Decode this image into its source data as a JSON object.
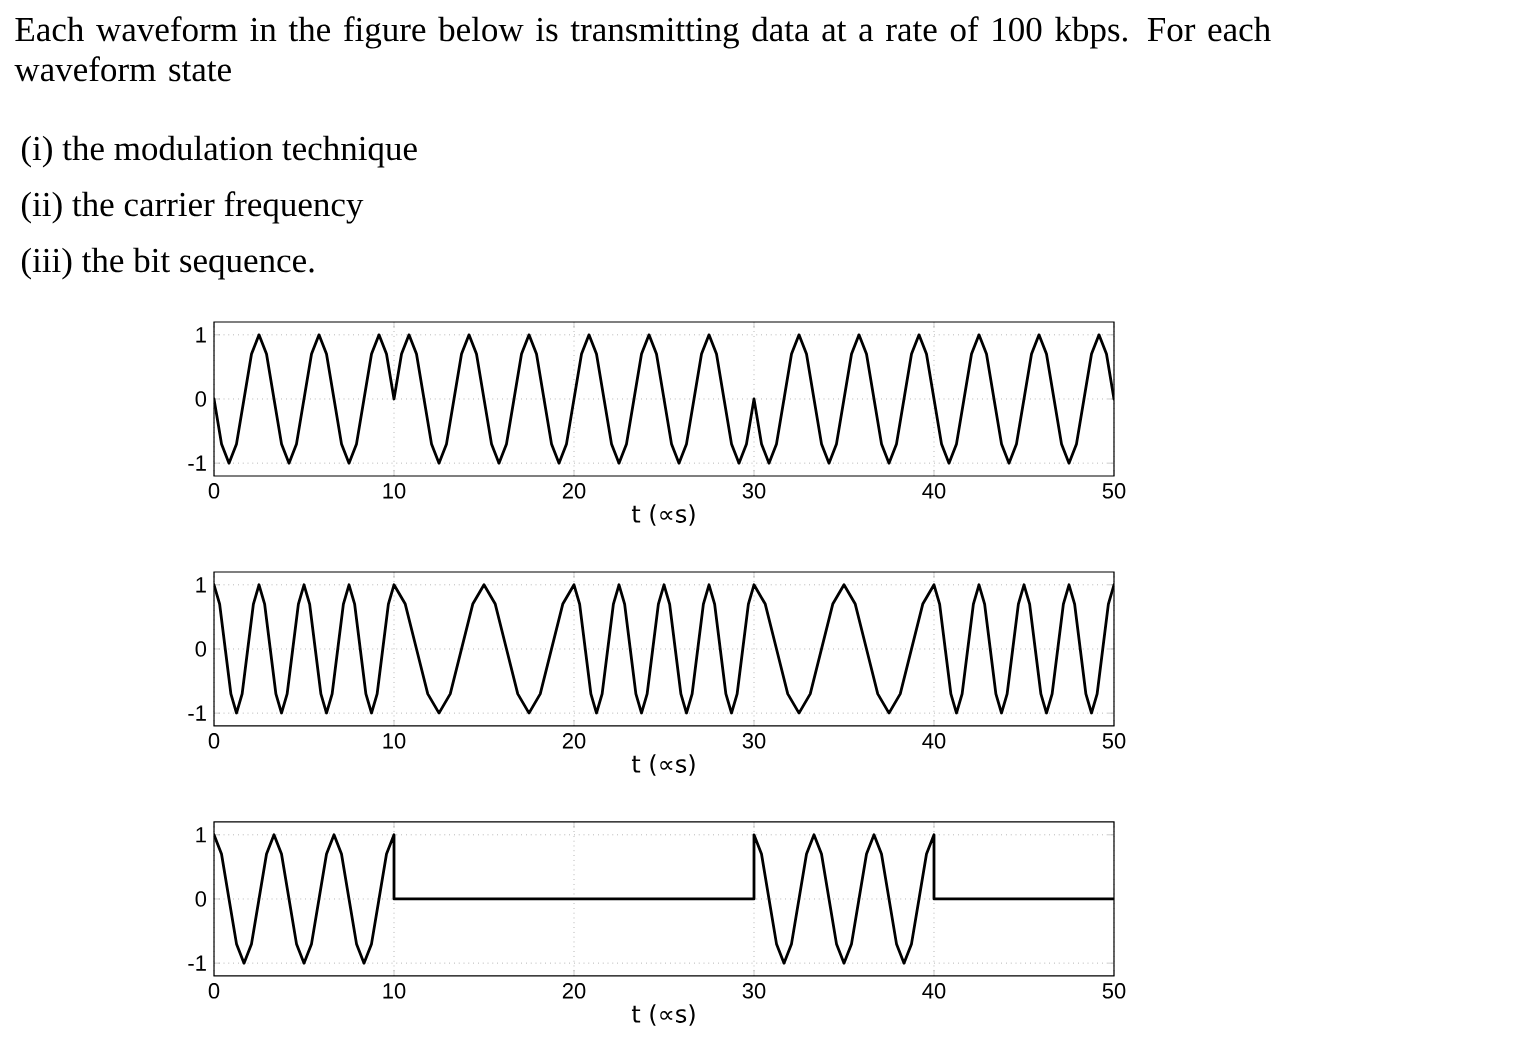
{
  "chart_data": [
    {
      "type": "line",
      "title": "Each waveform in the figure below is transmitting data at a rate of 100 kbps. For each waveform state",
      "annotations": [
        "(i) the modulation technique",
        "(ii) the carrier frequency",
        "(iii) the bit sequence."
      ],
      "xlabel": "t (∝s)",
      "xlim": [
        0,
        50
      ],
      "ylim": [
        -1.2,
        1.2
      ],
      "xticks": [
        0,
        10,
        20,
        30,
        40,
        50
      ],
      "yticks": [
        -1,
        0,
        1
      ],
      "grid": true,
      "x": [
        0,
        0.417,
        0.833,
        1.25,
        1.667,
        2.083,
        2.5,
        2.917,
        3.333,
        3.75,
        4.167,
        4.583,
        5,
        5.417,
        5.833,
        6.25,
        6.667,
        7.083,
        7.5,
        7.917,
        8.333,
        8.75,
        9.167,
        9.583,
        10,
        10.417,
        10.833,
        11.25,
        11.667,
        12.083,
        12.5,
        12.917,
        13.333,
        13.75,
        14.167,
        14.583,
        15,
        15.417,
        15.833,
        16.25,
        16.667,
        17.083,
        17.5,
        17.917,
        18.333,
        18.75,
        19.167,
        19.583,
        20,
        20.417,
        20.833,
        21.25,
        21.667,
        22.083,
        22.5,
        22.917,
        23.333,
        23.75,
        24.167,
        24.583,
        25,
        25.417,
        25.833,
        26.25,
        26.667,
        27.083,
        27.5,
        27.917,
        28.333,
        28.75,
        29.167,
        29.583,
        30,
        30.417,
        30.833,
        31.25,
        31.667,
        32.083,
        32.5,
        32.917,
        33.333,
        33.75,
        34.167,
        34.583,
        35,
        35.417,
        35.833,
        36.25,
        36.667,
        37.083,
        37.5,
        37.917,
        38.333,
        38.75,
        39.167,
        39.583,
        40,
        40.417,
        40.833,
        41.25,
        41.667,
        42.083,
        42.5,
        42.917,
        43.333,
        43.75,
        44.167,
        44.583,
        45,
        45.417,
        45.833,
        46.25,
        46.667,
        47.083,
        47.5,
        47.917,
        48.333,
        48.75,
        49.167,
        49.583,
        50
      ],
      "series": [
        {
          "color": "#000000",
          "values": [
            0,
            -0.7,
            -1,
            -0.7,
            0,
            0.7,
            1,
            0.7,
            0,
            -0.7,
            -1,
            -0.7,
            0,
            0.7,
            1,
            0.7,
            0,
            -0.7,
            -1,
            -0.7,
            0,
            0.7,
            1,
            0.7,
            0,
            0.7,
            1,
            0.7,
            0,
            -0.7,
            -1,
            -0.7,
            0,
            0.7,
            1,
            0.7,
            0,
            -0.7,
            -1,
            -0.7,
            0,
            0.7,
            1,
            0.7,
            0,
            -0.7,
            -1,
            -0.7,
            0,
            0.7,
            1,
            0.7,
            0,
            -0.7,
            -1,
            -0.7,
            0,
            0.7,
            1,
            0.7,
            0,
            -0.7,
            -1,
            -0.7,
            0,
            0.7,
            1,
            0.7,
            0,
            -0.7,
            -1,
            -0.7,
            0,
            -0.7,
            -1,
            -0.7,
            0,
            0.7,
            1,
            0.7,
            0,
            -0.7,
            -1,
            -0.7,
            0,
            0.7,
            1,
            0.7,
            0,
            -0.7,
            -1,
            -0.7,
            0,
            0.7,
            1,
            0.7,
            0,
            -0.7,
            -1,
            -0.7,
            0,
            0.7,
            1,
            0.7,
            0,
            -0.7,
            -1,
            -0.7,
            0,
            0.7,
            1,
            0.7,
            0,
            -0.7,
            -1,
            -0.7,
            0,
            0.7,
            1,
            0.7,
            0
          ]
        }
      ]
    },
    {
      "type": "line",
      "xlabel": "t (∝s)",
      "xlim": [
        0,
        50
      ],
      "ylim": [
        -1.2,
        1.2
      ],
      "xticks": [
        0,
        10,
        20,
        30,
        40,
        50
      ],
      "yticks": [
        -1,
        0,
        1
      ],
      "grid": true,
      "x": [
        0,
        0.313,
        0.625,
        0.938,
        1.25,
        1.563,
        1.875,
        2.188,
        2.5,
        2.813,
        3.125,
        3.438,
        3.75,
        4.063,
        4.375,
        4.688,
        5,
        5.313,
        5.625,
        5.938,
        6.25,
        6.563,
        6.875,
        7.188,
        7.5,
        7.813,
        8.125,
        8.438,
        8.75,
        9.063,
        9.375,
        9.688,
        10,
        10.625,
        11.25,
        11.875,
        12.5,
        13.125,
        13.75,
        14.375,
        15,
        15.625,
        16.25,
        16.875,
        17.5,
        18.125,
        18.75,
        19.375,
        20,
        20.313,
        20.625,
        20.938,
        21.25,
        21.563,
        21.875,
        22.188,
        22.5,
        22.813,
        23.125,
        23.438,
        23.75,
        24.063,
        24.375,
        24.688,
        25,
        25.313,
        25.625,
        25.938,
        26.25,
        26.563,
        26.875,
        27.188,
        27.5,
        27.813,
        28.125,
        28.438,
        28.75,
        29.063,
        29.375,
        29.688,
        30,
        30.625,
        31.25,
        31.875,
        32.5,
        33.125,
        33.75,
        34.375,
        35,
        35.625,
        36.25,
        36.875,
        37.5,
        38.125,
        38.75,
        39.375,
        40,
        40.313,
        40.625,
        40.938,
        41.25,
        41.563,
        41.875,
        42.188,
        42.5,
        42.813,
        43.125,
        43.438,
        43.75,
        44.063,
        44.375,
        44.688,
        45,
        45.313,
        45.625,
        45.938,
        46.25,
        46.563,
        46.875,
        47.188,
        47.5,
        47.813,
        48.125,
        48.438,
        48.75,
        49.063,
        49.375,
        49.688,
        50
      ],
      "series": [
        {
          "color": "#000000",
          "values": [
            1,
            0.7,
            0,
            -0.7,
            -1,
            -0.7,
            0,
            0.7,
            1,
            0.7,
            0,
            -0.7,
            -1,
            -0.7,
            0,
            0.7,
            1,
            0.7,
            0,
            -0.7,
            -1,
            -0.7,
            0,
            0.7,
            1,
            0.7,
            0,
            -0.7,
            -1,
            -0.7,
            0,
            0.7,
            1,
            0.7,
            0,
            -0.7,
            -1,
            -0.7,
            0,
            0.7,
            1,
            0.7,
            0,
            -0.7,
            -1,
            -0.7,
            0,
            0.7,
            1,
            0.7,
            0,
            -0.7,
            -1,
            -0.7,
            0,
            0.7,
            1,
            0.7,
            0,
            -0.7,
            -1,
            -0.7,
            0,
            0.7,
            1,
            0.7,
            0,
            -0.7,
            -1,
            -0.7,
            0,
            0.7,
            1,
            0.7,
            0,
            -0.7,
            -1,
            -0.7,
            0,
            0.7,
            1,
            0.7,
            0,
            -0.7,
            -1,
            -0.7,
            0,
            0.7,
            1,
            0.7,
            0,
            -0.7,
            -1,
            -0.7,
            0,
            0.7,
            1,
            0.7,
            0,
            -0.7,
            -1,
            -0.7,
            0,
            0.7,
            1,
            0.7,
            0,
            -0.7,
            -1,
            -0.7,
            0,
            0.7,
            1,
            0.7,
            0,
            -0.7,
            -1,
            -0.7,
            0,
            0.7,
            1,
            0.7,
            0,
            -0.7,
            -1,
            -0.7,
            0,
            0.7,
            1
          ]
        }
      ]
    },
    {
      "type": "line",
      "xlabel": "t (∝s)",
      "xlim": [
        0,
        50
      ],
      "ylim": [
        -1.2,
        1.2
      ],
      "xticks": [
        0,
        10,
        20,
        30,
        40,
        50
      ],
      "yticks": [
        -1,
        0,
        1
      ],
      "grid": true,
      "x": [
        0,
        0.417,
        0.833,
        1.25,
        1.667,
        2.083,
        2.5,
        2.917,
        3.333,
        3.75,
        4.167,
        4.583,
        5,
        5.417,
        5.833,
        6.25,
        6.667,
        7.083,
        7.5,
        7.917,
        8.333,
        8.75,
        9.167,
        9.583,
        10,
        10,
        30,
        30,
        30.417,
        30.833,
        31.25,
        31.667,
        32.083,
        32.5,
        32.917,
        33.333,
        33.75,
        34.167,
        34.583,
        35,
        35.417,
        35.833,
        36.25,
        36.667,
        37.083,
        37.5,
        37.917,
        38.333,
        38.75,
        39.167,
        39.583,
        40,
        40,
        50
      ],
      "series": [
        {
          "color": "#000000",
          "values": [
            1,
            0.7,
            0,
            -0.7,
            -1,
            -0.7,
            0,
            0.7,
            1,
            0.7,
            0,
            -0.7,
            -1,
            -0.7,
            0,
            0.7,
            1,
            0.7,
            0,
            -0.7,
            -1,
            -0.7,
            0,
            0.7,
            1,
            0,
            0,
            1,
            0.7,
            0,
            -0.7,
            -1,
            -0.7,
            0,
            0.7,
            1,
            0.7,
            0,
            -0.7,
            -1,
            -0.7,
            0,
            0.7,
            1,
            0.7,
            0,
            -0.7,
            -1,
            -0.7,
            0,
            0.7,
            1,
            0,
            0
          ]
        }
      ]
    }
  ]
}
